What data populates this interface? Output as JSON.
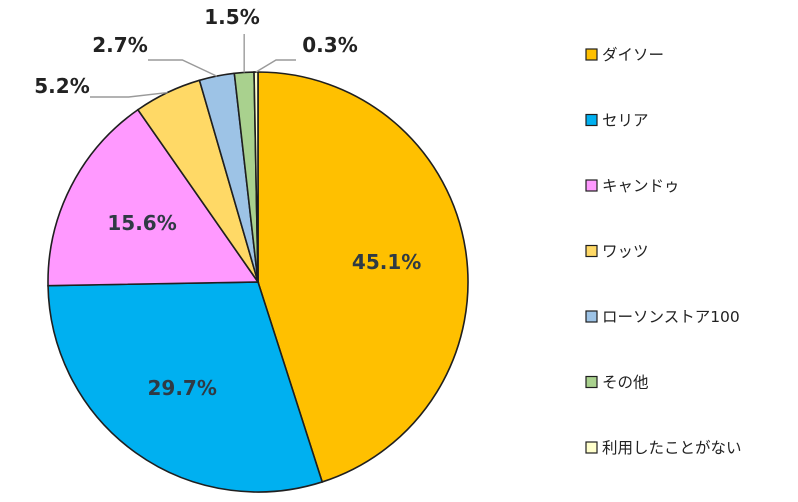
{
  "chart_data": {
    "type": "pie",
    "title": "",
    "slices": [
      {
        "label": "ダイソー",
        "value": 45.1,
        "display": "45.1%",
        "color": "#FFC000"
      },
      {
        "label": "セリア",
        "value": 29.7,
        "display": "29.7%",
        "color": "#00B0F0"
      },
      {
        "label": "キャンドゥ",
        "value": 15.6,
        "display": "15.6%",
        "color": "#FF99FF"
      },
      {
        "label": "ワッツ",
        "value": 5.2,
        "display": "5.2%",
        "color": "#FFD966"
      },
      {
        "label": "ローソンストア100",
        "value": 2.7,
        "display": "2.7%",
        "color": "#9DC3E6"
      },
      {
        "label": "その他",
        "value": 1.5,
        "display": "1.5%",
        "color": "#A9D18E"
      },
      {
        "label": "利用したことがない",
        "value": 0.3,
        "display": "0.3%",
        "color": "#FFFFCC"
      }
    ],
    "legend_position": "right",
    "start_angle": "top, clockwise"
  }
}
